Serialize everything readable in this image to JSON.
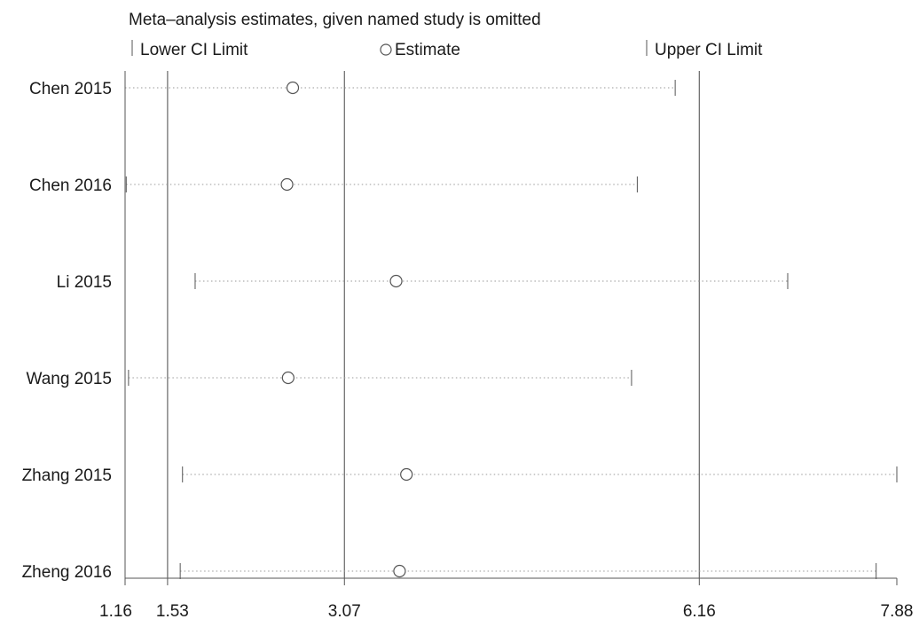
{
  "chart_data": {
    "type": "forest-sensitivity",
    "title": "Meta–analysis estimates, given named study is omitted",
    "legend": {
      "lower": "Lower CI Limit",
      "estimate": "Estimate",
      "upper": "Upper CI Limit"
    },
    "x_ticks": [
      1.16,
      1.53,
      3.07,
      6.16,
      7.88
    ],
    "x_tick_labels": [
      "1.16",
      "1.53",
      "3.07",
      "6.16",
      "7.88"
    ],
    "xlim": [
      1.16,
      7.88
    ],
    "reference_lines": [
      1.53,
      3.07,
      6.16
    ],
    "studies": [
      {
        "name": "Chen 2015",
        "lower": 1.16,
        "estimate": 2.62,
        "upper": 5.95
      },
      {
        "name": "Chen 2016",
        "lower": 1.17,
        "estimate": 2.57,
        "upper": 5.62
      },
      {
        "name": "Li 2015",
        "lower": 1.77,
        "estimate": 3.52,
        "upper": 6.93
      },
      {
        "name": "Wang 2015",
        "lower": 1.19,
        "estimate": 2.58,
        "upper": 5.57
      },
      {
        "name": "Zhang 2015",
        "lower": 1.66,
        "estimate": 3.61,
        "upper": 7.88
      },
      {
        "name": "Zheng 2016",
        "lower": 1.64,
        "estimate": 3.55,
        "upper": 7.7
      }
    ],
    "colors": {
      "axis": "#555555",
      "reference_line": "#666666",
      "dotted_line": "#9a9a9a",
      "text": "#1a1a1a"
    }
  }
}
